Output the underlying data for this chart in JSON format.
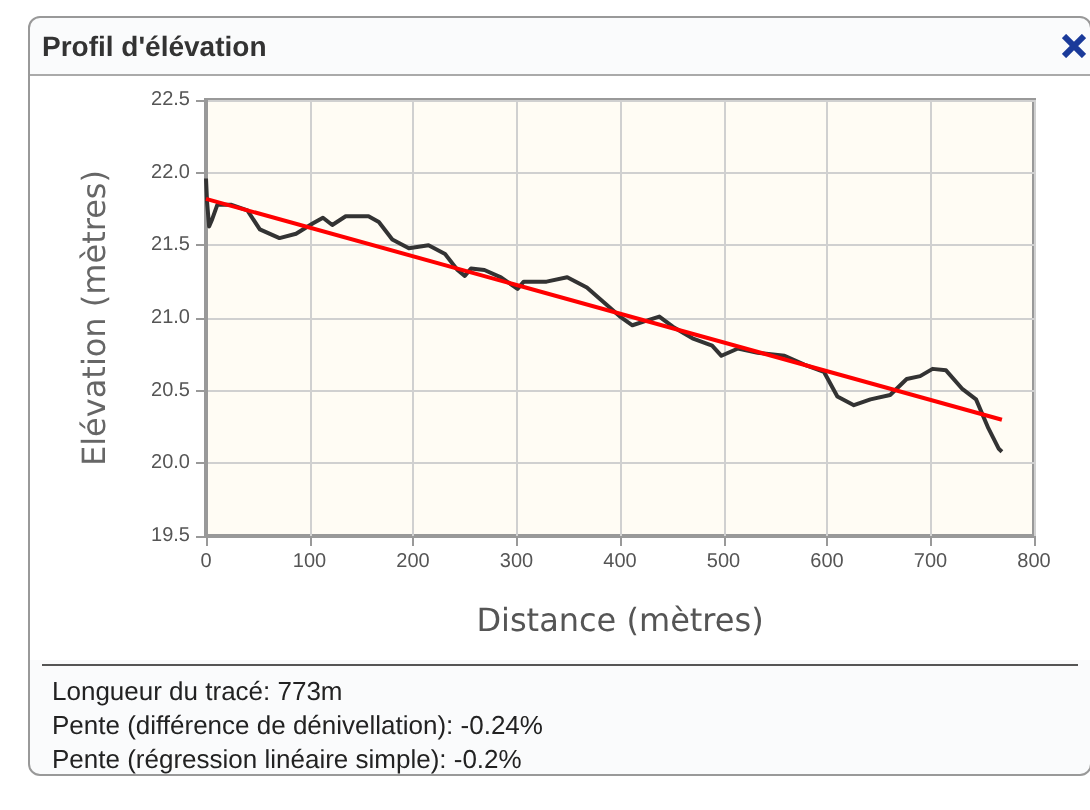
{
  "chart_data": {
    "type": "line",
    "title": "Profil d'élévation",
    "xlabel": "Distance (mètres)",
    "ylabel": "Elévation (mètres)",
    "xlim": [
      0,
      800
    ],
    "xticks": [
      0,
      100,
      200,
      300,
      400,
      500,
      600,
      700,
      800
    ],
    "ylim": [
      19.5,
      22.5
    ],
    "yticks": [
      19.5,
      {
        "value": 20,
        "label": "20.0"
      },
      20.5,
      {
        "value": 21,
        "label": "21.0"
      },
      21.5,
      {
        "value": 22,
        "label": "22.0"
      },
      22.5
    ],
    "grid": true,
    "marker": "none",
    "series": [
      {
        "color": "#333333",
        "x": [
          0,
          1,
          3,
          6,
          11,
          24,
          40,
          52,
          71,
          87,
          103,
          113,
          122,
          135,
          157,
          167,
          180,
          196,
          215,
          231,
          243,
          250,
          256,
          269,
          285,
          301,
          307,
          329,
          349,
          368,
          384,
          400,
          412,
          425,
          438,
          451,
          470,
          489,
          498,
          514,
          533,
          559,
          578,
          597,
          610,
          626,
          642,
          661,
          677,
          690,
          702,
          715,
          731,
          744,
          756,
          766,
          769
        ],
        "values": [
          21.96,
          21.8,
          21.63,
          21.68,
          21.78,
          21.78,
          21.74,
          21.61,
          21.55,
          21.58,
          21.65,
          21.69,
          21.64,
          21.7,
          21.7,
          21.66,
          21.54,
          21.48,
          21.5,
          21.44,
          21.33,
          21.29,
          21.34,
          21.33,
          21.28,
          21.2,
          21.25,
          21.25,
          21.28,
          21.21,
          21.11,
          21.01,
          20.95,
          20.98,
          21.01,
          20.94,
          20.86,
          20.81,
          20.74,
          20.79,
          20.76,
          20.74,
          20.68,
          20.63,
          20.46,
          20.4,
          20.44,
          20.47,
          20.58,
          20.6,
          20.65,
          20.64,
          20.51,
          20.44,
          20.24,
          20.1,
          20.08
        ]
      },
      {
        "color": "#ff0000",
        "x": [
          0,
          769
        ],
        "values": [
          21.82,
          20.3
        ]
      }
    ],
    "annotations": [
      "Longueur du tracé: 773m",
      "Pente (différence de dénivellation): -0.24%",
      "Pente (régression linéaire simple): -0.2%"
    ]
  }
}
